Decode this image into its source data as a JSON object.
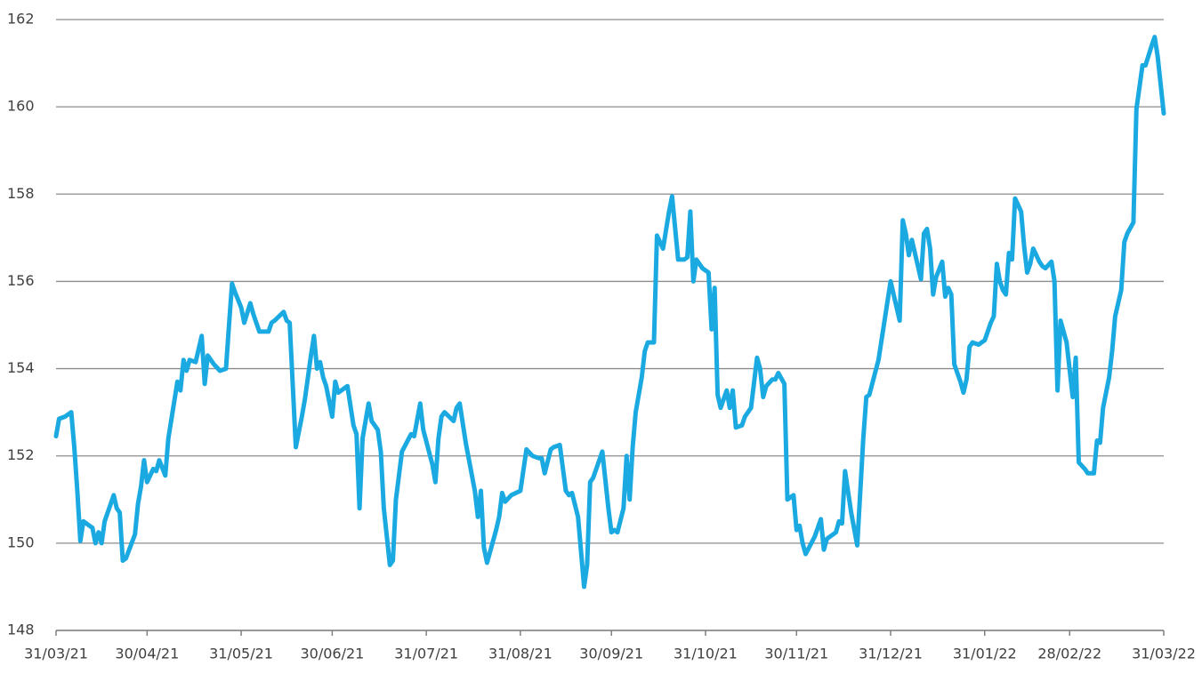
{
  "chart_data": {
    "type": "line",
    "color": "#1ba9e1",
    "grid": true,
    "xlim": [
      "31/03/21",
      "31/03/22"
    ],
    "xticks": [
      "31/03/21",
      "30/04/21",
      "31/05/21",
      "30/06/21",
      "31/07/21",
      "31/08/21",
      "30/09/21",
      "31/10/21",
      "30/11/21",
      "31/12/21",
      "31/01/22",
      "28/02/22",
      "31/03/22"
    ],
    "ylim": [
      148,
      162
    ],
    "yticks": [
      148,
      150,
      152,
      154,
      156,
      158,
      160,
      162
    ],
    "x": [
      "31/03/21",
      "01/04/21",
      "03/04/21",
      "05/04/21",
      "06/04/21",
      "07/04/21",
      "08/04/21",
      "09/04/21",
      "11/04/21",
      "12/04/21",
      "13/04/21",
      "14/04/21",
      "15/04/21",
      "16/04/21",
      "19/04/21",
      "20/04/21",
      "21/04/21",
      "22/04/21",
      "23/04/21",
      "26/04/21",
      "27/04/21",
      "28/04/21",
      "29/04/21",
      "30/04/21",
      "02/05/21",
      "03/05/21",
      "04/05/21",
      "06/05/21",
      "07/05/21",
      "10/05/21",
      "11/05/21",
      "12/05/21",
      "13/05/21",
      "14/05/21",
      "16/05/21",
      "18/05/21",
      "19/05/21",
      "20/05/21",
      "22/05/21",
      "24/05/21",
      "26/05/21",
      "27/05/21",
      "28/05/21",
      "29/05/21",
      "31/05/21",
      "01/06/21",
      "03/06/21",
      "04/06/21",
      "06/06/21",
      "09/06/21",
      "10/06/21",
      "11/06/21",
      "14/06/21",
      "15/06/21",
      "16/06/21",
      "18/06/21",
      "20/06/21",
      "21/06/21",
      "23/06/21",
      "24/06/21",
      "25/06/21",
      "26/06/21",
      "27/06/21",
      "28/06/21",
      "30/06/21",
      "01/07/21",
      "02/07/21",
      "04/07/21",
      "05/07/21",
      "07/07/21",
      "08/07/21",
      "09/07/21",
      "10/07/21",
      "11/07/21",
      "12/07/21",
      "13/07/21",
      "15/07/21",
      "16/07/21",
      "17/07/21",
      "19/07/21",
      "20/07/21",
      "21/07/21",
      "23/07/21",
      "26/07/21",
      "27/07/21",
      "29/07/21",
      "30/07/21",
      "02/08/21",
      "03/08/21",
      "04/08/21",
      "05/08/21",
      "06/08/21",
      "09/08/21",
      "10/08/21",
      "11/08/21",
      "13/08/21",
      "16/08/21",
      "17/08/21",
      "18/08/21",
      "19/08/21",
      "20/08/21",
      "23/08/21",
      "24/08/21",
      "25/08/21",
      "26/08/21",
      "28/08/21",
      "31/08/21",
      "02/09/21",
      "04/09/21",
      "06/09/21",
      "07/09/21",
      "08/09/21",
      "10/09/21",
      "11/09/21",
      "13/09/21",
      "15/09/21",
      "16/09/21",
      "17/09/21",
      "19/09/21",
      "20/09/21",
      "21/09/21",
      "22/09/21",
      "23/09/21",
      "24/09/21",
      "27/09/21",
      "29/09/21",
      "30/09/21",
      "01/10/21",
      "02/10/21",
      "04/10/21",
      "05/10/21",
      "06/10/21",
      "07/10/21",
      "08/10/21",
      "10/10/21",
      "11/10/21",
      "12/10/21",
      "14/10/21",
      "15/10/21",
      "17/10/21",
      "19/10/21",
      "20/10/21",
      "22/10/21",
      "24/10/21",
      "25/10/21",
      "26/10/21",
      "27/10/21",
      "28/10/21",
      "30/10/21",
      "01/11/21",
      "02/11/21",
      "03/11/21",
      "04/11/21",
      "05/11/21",
      "07/11/21",
      "08/11/21",
      "09/11/21",
      "10/11/21",
      "12/11/21",
      "13/11/21",
      "15/11/21",
      "17/11/21",
      "18/11/21",
      "19/11/21",
      "20/11/21",
      "22/11/21",
      "23/11/21",
      "24/11/21",
      "26/11/21",
      "27/11/21",
      "28/11/21",
      "29/11/21",
      "30/11/21",
      "01/12/21",
      "02/12/21",
      "03/12/21",
      "06/12/21",
      "08/12/21",
      "09/12/21",
      "10/12/21",
      "13/12/21",
      "14/12/21",
      "15/12/21",
      "16/12/21",
      "18/12/21",
      "20/12/21",
      "22/12/21",
      "23/12/21",
      "24/12/21",
      "27/12/21",
      "29/12/21",
      "31/12/21",
      "01/01/22",
      "03/01/22",
      "04/01/22",
      "05/01/22",
      "06/01/22",
      "07/01/22",
      "10/01/22",
      "11/01/22",
      "12/01/22",
      "13/01/22",
      "14/01/22",
      "15/01/22",
      "17/01/22",
      "18/01/22",
      "19/01/22",
      "20/01/22",
      "21/01/22",
      "23/01/22",
      "24/01/22",
      "25/01/22",
      "26/01/22",
      "27/01/22",
      "29/01/22",
      "30/01/22",
      "31/01/22",
      "02/02/22",
      "03/02/22",
      "04/02/22",
      "05/02/22",
      "06/02/22",
      "07/02/22",
      "08/02/22",
      "09/02/22",
      "10/02/22",
      "12/02/22",
      "13/02/22",
      "14/02/22",
      "15/02/22",
      "16/02/22",
      "18/02/22",
      "19/02/22",
      "20/02/22",
      "22/02/22",
      "23/02/22",
      "24/02/22",
      "25/02/22",
      "26/02/22",
      "27/02/22",
      "01/03/22",
      "02/03/22",
      "03/03/22",
      "05/03/22",
      "06/03/22",
      "08/03/22",
      "09/03/22",
      "10/03/22",
      "11/03/22",
      "13/03/22",
      "14/03/22",
      "15/03/22",
      "17/03/22",
      "18/03/22",
      "19/03/22",
      "21/03/22",
      "22/03/22",
      "24/03/22",
      "25/03/22",
      "27/03/22",
      "28/03/22",
      "29/03/22",
      "31/03/22"
    ],
    "values": [
      152.45,
      152.85,
      152.9,
      153.0,
      152.2,
      151.2,
      150.05,
      150.5,
      150.4,
      150.35,
      150.0,
      150.25,
      150.0,
      150.5,
      151.1,
      150.8,
      150.7,
      149.6,
      149.65,
      150.2,
      150.9,
      151.3,
      151.9,
      151.4,
      151.7,
      151.65,
      151.9,
      151.55,
      152.4,
      153.7,
      153.5,
      154.2,
      153.95,
      154.2,
      154.15,
      154.75,
      153.65,
      154.3,
      154.1,
      153.95,
      154.0,
      155.0,
      155.95,
      155.75,
      155.4,
      155.05,
      155.5,
      155.25,
      154.85,
      154.85,
      155.05,
      155.1,
      155.3,
      155.1,
      155.05,
      152.2,
      152.9,
      153.3,
      154.3,
      154.75,
      154.0,
      154.15,
      153.8,
      153.6,
      152.9,
      153.7,
      153.45,
      153.55,
      153.6,
      152.7,
      152.5,
      150.8,
      152.4,
      152.8,
      153.2,
      152.8,
      152.6,
      152.1,
      150.8,
      149.5,
      149.6,
      151.0,
      152.1,
      152.5,
      152.45,
      153.2,
      152.6,
      151.8,
      151.4,
      152.4,
      152.9,
      153.0,
      152.8,
      153.1,
      153.2,
      152.3,
      151.2,
      150.6,
      151.2,
      149.9,
      149.55,
      150.3,
      150.6,
      151.15,
      150.95,
      151.1,
      151.2,
      152.15,
      152.0,
      151.95,
      151.95,
      151.6,
      152.15,
      152.2,
      152.25,
      151.2,
      151.1,
      151.15,
      150.6,
      149.8,
      149.0,
      149.5,
      151.4,
      151.5,
      152.1,
      150.8,
      150.25,
      150.3,
      150.25,
      150.8,
      152.0,
      151.0,
      152.2,
      153.0,
      153.8,
      154.4,
      154.6,
      154.6,
      157.05,
      156.75,
      157.6,
      157.95,
      156.5,
      156.5,
      156.55,
      157.6,
      156.0,
      156.5,
      156.3,
      156.2,
      154.9,
      155.85,
      153.4,
      153.1,
      153.5,
      153.1,
      153.5,
      152.65,
      152.7,
      152.9,
      153.1,
      154.25,
      154.0,
      153.35,
      153.6,
      153.75,
      153.75,
      153.9,
      153.65,
      151.0,
      151.05,
      151.1,
      150.3,
      150.4,
      150.0,
      149.75,
      150.15,
      150.55,
      149.85,
      150.1,
      150.25,
      150.5,
      150.45,
      151.65,
      150.7,
      149.95,
      152.4,
      153.35,
      153.4,
      154.2,
      155.1,
      156.0,
      155.7,
      155.1,
      157.4,
      157.1,
      156.6,
      156.95,
      156.05,
      157.1,
      157.2,
      156.75,
      155.7,
      156.1,
      156.45,
      155.65,
      155.85,
      155.7,
      154.1,
      153.7,
      153.45,
      153.75,
      154.5,
      154.6,
      154.55,
      154.6,
      154.65,
      155.05,
      155.2,
      156.4,
      156.0,
      155.8,
      155.7,
      156.65,
      156.5,
      157.9,
      157.6,
      156.8,
      156.2,
      156.4,
      156.75,
      156.45,
      156.35,
      156.3,
      156.45,
      156.0,
      153.5,
      155.1,
      154.85,
      154.6,
      153.35,
      154.25,
      151.85,
      151.7,
      151.6,
      151.6,
      152.35,
      152.3,
      153.1,
      153.8,
      154.4,
      155.2,
      155.8,
      156.9,
      157.1,
      157.35,
      159.95,
      160.95,
      160.95,
      161.4,
      161.6,
      161.15,
      159.85
    ]
  }
}
